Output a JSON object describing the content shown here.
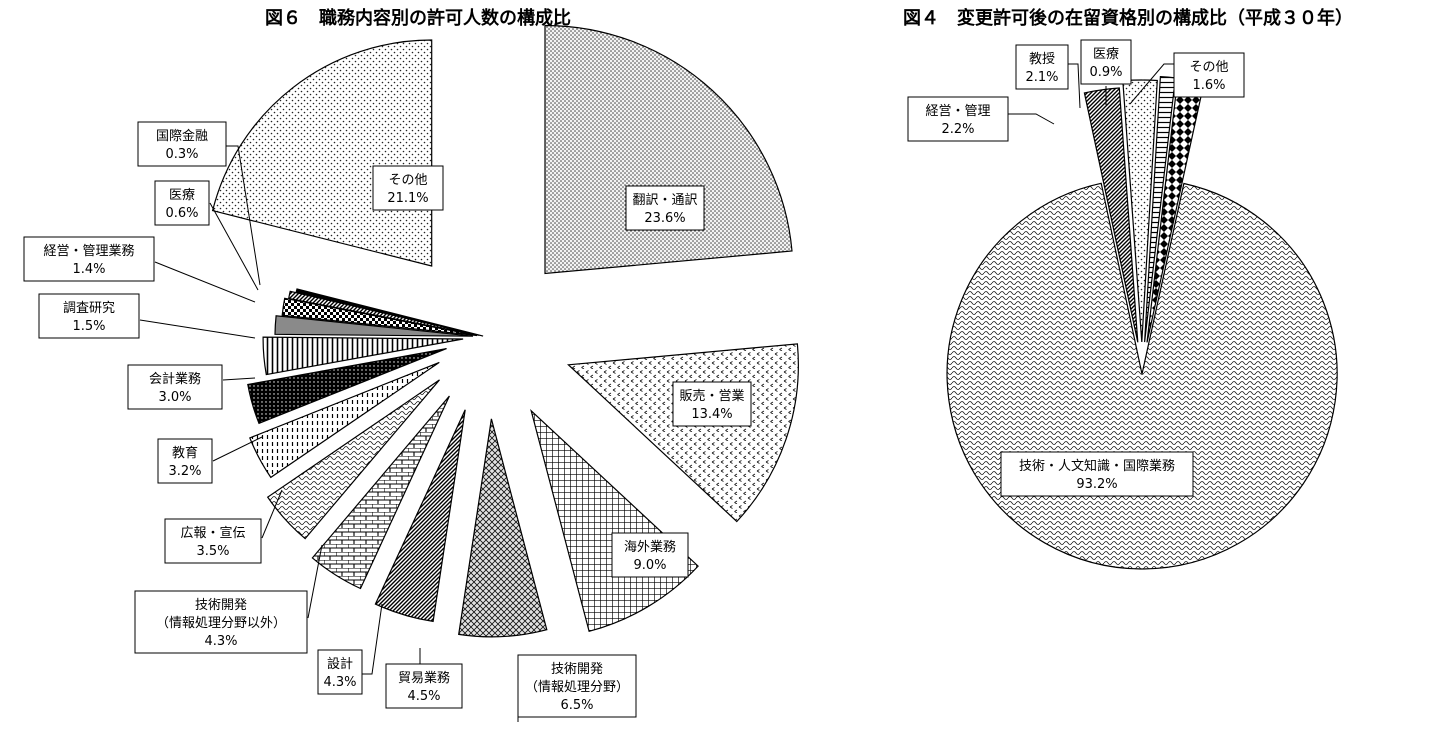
{
  "chart_data": [
    {
      "type": "pie",
      "title": "図６　職務内容別の許可人数の構成比",
      "unit": "%",
      "slices": [
        {
          "lines": [
            "翻訳・通訳"
          ],
          "value": 23.6,
          "pct": "23.6%",
          "pattern": "dots-fine"
        },
        {
          "lines": [
            "販売・営業"
          ],
          "value": 13.4,
          "pct": "13.4%",
          "pattern": "chevron"
        },
        {
          "lines": [
            "海外業務"
          ],
          "value": 9.0,
          "pct": "9.0%",
          "pattern": "grid"
        },
        {
          "lines": [
            "技術開発",
            "（情報処理分野）"
          ],
          "value": 6.5,
          "pct": "6.5%",
          "pattern": "diamond"
        },
        {
          "lines": [
            "貿易業務"
          ],
          "value": 4.5,
          "pct": "4.5%",
          "pattern": "diag-dense"
        },
        {
          "lines": [
            "設計"
          ],
          "value": 4.3,
          "pct": "4.3%",
          "pattern": "brick"
        },
        {
          "lines": [
            "技術開発",
            "（情報処理分野以外）"
          ],
          "value": 4.3,
          "pct": "4.3%",
          "pattern": "wave"
        },
        {
          "lines": [
            "広報・宣伝"
          ],
          "value": 3.5,
          "pct": "3.5%",
          "pattern": "vdash"
        },
        {
          "lines": [
            "教育"
          ],
          "value": 3.2,
          "pct": "3.2%",
          "pattern": "black-dots"
        },
        {
          "lines": [
            "会計業務"
          ],
          "value": 3.0,
          "pct": "3.0%",
          "pattern": "vlines"
        },
        {
          "lines": [
            "調査研究"
          ],
          "value": 1.5,
          "pct": "1.5%",
          "pattern": "gray"
        },
        {
          "lines": [
            "経営・管理業務"
          ],
          "value": 1.4,
          "pct": "1.4%",
          "pattern": "checker"
        },
        {
          "lines": [
            "医療"
          ],
          "value": 0.6,
          "pct": "0.6%",
          "pattern": "diag-dense"
        },
        {
          "lines": [
            "国際金融"
          ],
          "value": 0.3,
          "pct": "0.3%",
          "pattern": "black"
        },
        {
          "lines": [
            "その他"
          ],
          "value": 21.1,
          "pct": "21.1%",
          "pattern": "dots-sparse"
        }
      ]
    },
    {
      "type": "pie",
      "title": "図４　変更許可後の在留資格別の構成比（平成３０年）",
      "unit": "%",
      "slices": [
        {
          "lines": [
            "技術・人文知識・国際業務"
          ],
          "value": 93.2,
          "pct": "93.2%",
          "pattern": "wave"
        },
        {
          "lines": [
            "経営・管理"
          ],
          "value": 2.2,
          "pct": "2.2%",
          "pattern": "diag-dense"
        },
        {
          "lines": [
            "教授"
          ],
          "value": 2.1,
          "pct": "2.1%",
          "pattern": "dots-sparse"
        },
        {
          "lines": [
            "医療"
          ],
          "value": 0.9,
          "pct": "0.9%",
          "pattern": "hlines"
        },
        {
          "lines": [
            "その他"
          ],
          "value": 1.6,
          "pct": "1.6%",
          "pattern": "diamond-large"
        }
      ]
    }
  ]
}
